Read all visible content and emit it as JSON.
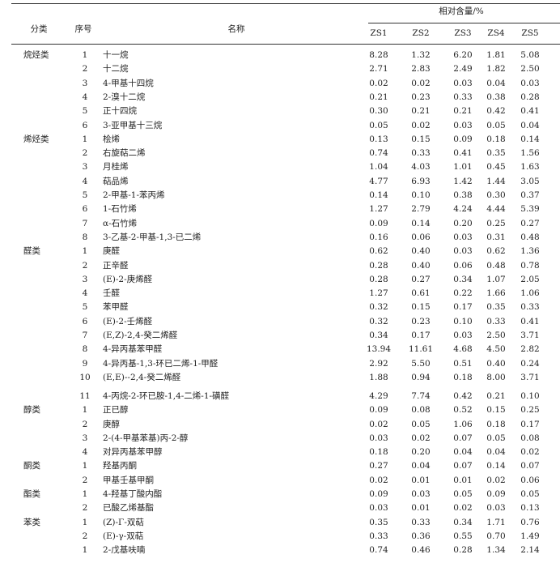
{
  "header": {
    "category": "分类",
    "index": "序号",
    "name": "名称",
    "group": "相对含量/%",
    "samples": [
      "ZS1",
      "ZS2",
      "ZS3",
      "ZS4",
      "ZS5"
    ]
  },
  "rows": [
    {
      "cat": "烷烃类",
      "no": "1",
      "name": "十一烷",
      "v": [
        "8.28",
        "1.32",
        "6.20",
        "1.81",
        "5.08"
      ]
    },
    {
      "cat": "",
      "no": "2",
      "name": "十二烷",
      "v": [
        "2.71",
        "2.83",
        "2.49",
        "1.82",
        "2.50"
      ]
    },
    {
      "cat": "",
      "no": "3",
      "name": "4-甲基十四烷",
      "v": [
        "0.02",
        "0.02",
        "0.03",
        "0.04",
        "0.03"
      ]
    },
    {
      "cat": "",
      "no": "4",
      "name": "2-溴十二烷",
      "v": [
        "0.21",
        "0.23",
        "0.33",
        "0.38",
        "0.28"
      ]
    },
    {
      "cat": "",
      "no": "5",
      "name": "正十四烷",
      "v": [
        "0.30",
        "0.21",
        "0.21",
        "0.42",
        "0.41"
      ]
    },
    {
      "cat": "",
      "no": "6",
      "name": "3-亚甲基十三烷",
      "v": [
        "0.05",
        "0.02",
        "0.03",
        "0.05",
        "0.04"
      ]
    },
    {
      "cat": "烯烃类",
      "no": "1",
      "name": "桧烯",
      "v": [
        "0.13",
        "0.15",
        "0.09",
        "0.18",
        "0.14"
      ]
    },
    {
      "cat": "",
      "no": "2",
      "name": "右旋萜二烯",
      "v": [
        "0.74",
        "0.33",
        "0.41",
        "0.35",
        "1.56"
      ]
    },
    {
      "cat": "",
      "no": "3",
      "name": "月桂烯",
      "v": [
        "1.04",
        "4.03",
        "1.01",
        "0.45",
        "1.63"
      ]
    },
    {
      "cat": "",
      "no": "4",
      "name": "萜品烯",
      "v": [
        "4.77",
        "6.93",
        "1.42",
        "1.44",
        "3.05"
      ]
    },
    {
      "cat": "",
      "no": "5",
      "name": "2-甲基-1-苯丙烯",
      "v": [
        "0.14",
        "0.10",
        "0.38",
        "0.30",
        "0.37"
      ]
    },
    {
      "cat": "",
      "no": "6",
      "name": "1-石竹烯",
      "v": [
        "1.27",
        "2.79",
        "4.24",
        "4.44",
        "5.39"
      ]
    },
    {
      "cat": "",
      "no": "7",
      "name": "α-石竹烯",
      "v": [
        "0.09",
        "0.14",
        "0.20",
        "0.25",
        "0.27"
      ]
    },
    {
      "cat": "",
      "no": "8",
      "name": "3-乙基-2-甲基-1,3-已二烯",
      "v": [
        "0.16",
        "0.06",
        "0.03",
        "0.31",
        "0.48"
      ]
    },
    {
      "cat": "醛类",
      "no": "1",
      "name": "庚醛",
      "v": [
        "0.62",
        "0.40",
        "0.03",
        "0.62",
        "1.36"
      ]
    },
    {
      "cat": "",
      "no": "2",
      "name": "正辛醛",
      "v": [
        "0.28",
        "0.40",
        "0.06",
        "0.48",
        "0.78"
      ]
    },
    {
      "cat": "",
      "no": "3",
      "name": "(E)-2-庚烯醛",
      "v": [
        "0.28",
        "0.27",
        "0.34",
        "1.07",
        "2.05"
      ]
    },
    {
      "cat": "",
      "no": "4",
      "name": "壬醛",
      "v": [
        "1.27",
        "0.61",
        "0.22",
        "1.66",
        "1.06"
      ]
    },
    {
      "cat": "",
      "no": "5",
      "name": "苯甲醛",
      "v": [
        "0.32",
        "0.15",
        "0.17",
        "0.35",
        "0.33"
      ]
    },
    {
      "cat": "",
      "no": "6",
      "name": "(E)-2-壬烯醛",
      "v": [
        "0.32",
        "0.23",
        "0.10",
        "0.33",
        "0.41"
      ]
    },
    {
      "cat": "",
      "no": "7",
      "name": "(E,Z)-2,4-癸二烯醛",
      "v": [
        "0.34",
        "0.17",
        "0.03",
        "2.50",
        "3.71"
      ]
    },
    {
      "cat": "",
      "no": "8",
      "name": "4-异丙基苯甲醛",
      "v": [
        "13.94",
        "11.61",
        "4.68",
        "4.50",
        "2.82"
      ]
    },
    {
      "cat": "",
      "no": "9",
      "name": "4-异丙基-1,3-环已二烯-1-甲醛",
      "v": [
        "2.92",
        "5.50",
        "0.51",
        "0.40",
        "0.24"
      ]
    },
    {
      "cat": "",
      "no": "10",
      "name": "(E,E)--2,4-癸二烯醛",
      "v": [
        "1.88",
        "0.94",
        "0.18",
        "8.00",
        "3.71"
      ]
    },
    {
      "cat": "",
      "no": "11",
      "name": "4-丙烷-2-环已胺-1,4-二烯-1-磺醛",
      "v": [
        "4.29",
        "7.74",
        "0.42",
        "0.21",
        "0.10"
      ]
    },
    {
      "cat": "醇类",
      "no": "1",
      "name": "正已醇",
      "v": [
        "0.09",
        "0.08",
        "0.52",
        "0.15",
        "0.25"
      ]
    },
    {
      "cat": "",
      "no": "2",
      "name": "庚醇",
      "v": [
        "0.02",
        "0.05",
        "1.06",
        "0.18",
        "0.17"
      ]
    },
    {
      "cat": "",
      "no": "3",
      "name": "2-(4-甲基苯基)丙-2-醇",
      "v": [
        "0.03",
        "0.02",
        "0.07",
        "0.05",
        "0.08"
      ]
    },
    {
      "cat": "",
      "no": "4",
      "name": "对异丙基苯甲醇",
      "v": [
        "0.18",
        "0.20",
        "0.04",
        "0.04",
        "0.02"
      ]
    },
    {
      "cat": "酮类",
      "no": "1",
      "name": "羟基丙酮",
      "v": [
        "0.27",
        "0.04",
        "0.07",
        "0.14",
        "0.07"
      ]
    },
    {
      "cat": "",
      "no": "2",
      "name": "甲基壬基甲酮",
      "v": [
        "0.02",
        "0.01",
        "0.01",
        "0.02",
        "0.06"
      ]
    },
    {
      "cat": "酯类",
      "no": "1",
      "name": "4-羟基丁酸内酯",
      "v": [
        "0.09",
        "0.03",
        "0.05",
        "0.09",
        "0.05"
      ]
    },
    {
      "cat": "",
      "no": "2",
      "name": "已酸乙烯基酯",
      "v": [
        "0.03",
        "0.01",
        "0.02",
        "0.03",
        "0.13"
      ]
    },
    {
      "cat": "苯类",
      "no": "1",
      "name": "(Z)-Γ-双萜",
      "v": [
        "0.35",
        "0.33",
        "0.34",
        "1.71",
        "0.76"
      ]
    },
    {
      "cat": "",
      "no": "2",
      "name": "(E)-γ-双萜",
      "v": [
        "0.33",
        "0.36",
        "0.55",
        "0.70",
        "1.49"
      ]
    },
    {
      "cat": "",
      "no": "1",
      "name": "2-戊基呋喃",
      "v": [
        "0.74",
        "0.46",
        "0.28",
        "1.34",
        "2.14"
      ]
    }
  ]
}
